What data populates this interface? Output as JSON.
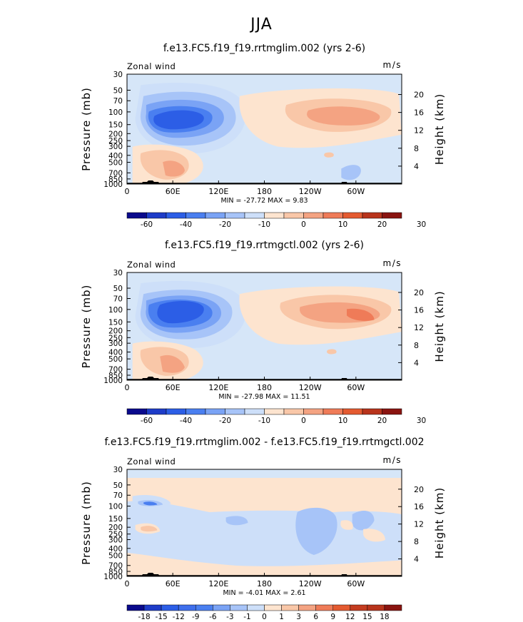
{
  "page_title": "JJA",
  "colors": {
    "bg_band": "#d6e6f8",
    "neg": [
      "#0a0a8c",
      "#1e3cc8",
      "#2c5ee6",
      "#4a7ff0",
      "#7aa3f5",
      "#a7c4f8",
      "#cddff9"
    ],
    "pos": [
      "#fde4cf",
      "#f9c7a8",
      "#f4a382",
      "#ef7b58",
      "#e45a30",
      "#b8341c",
      "#8a1410"
    ]
  },
  "chart_data": [
    {
      "type": "contour",
      "title": "f.e13.FC5.f19_f19.rrtmglim.002 (yrs 2-6)",
      "left_label": "Zonal wind",
      "right_label": "m/s",
      "ylabel": "Pressure (mb)",
      "ylabel2": "Height (km)",
      "x_ticks": [
        "0",
        "60E",
        "120E",
        "180",
        "120W",
        "60W"
      ],
      "y_ticks": [
        "30",
        "50",
        "70",
        "100",
        "150",
        "200",
        "250",
        "300",
        "400",
        "500",
        "700",
        "850",
        "1000"
      ],
      "y2_ticks": [
        "20",
        "16",
        "12",
        "8",
        "4"
      ],
      "stats": "MIN = -27.72   MAX =   9.83",
      "colorbar_labels": [
        "-60",
        "-40",
        "-20",
        "-10",
        "0",
        "10",
        "20",
        "30"
      ],
      "features": [
        {
          "lon": 75,
          "p": 160,
          "value": -25,
          "level": "neg"
        },
        {
          "lon": 255,
          "p": 120,
          "value": 9,
          "level": "pos"
        },
        {
          "lon": 60,
          "p": 550,
          "value": 6,
          "level": "pos"
        }
      ]
    },
    {
      "type": "contour",
      "title": "f.e13.FC5.f19_f19.rrtmgctl.002 (yrs 2-6)",
      "left_label": "Zonal wind",
      "right_label": "m/s",
      "ylabel": "Pressure (mb)",
      "ylabel2": "Height (km)",
      "x_ticks": [
        "0",
        "60E",
        "120E",
        "180",
        "120W",
        "60W"
      ],
      "y_ticks": [
        "30",
        "50",
        "70",
        "100",
        "150",
        "200",
        "250",
        "300",
        "400",
        "500",
        "700",
        "850",
        "1000"
      ],
      "y2_ticks": [
        "20",
        "16",
        "12",
        "8",
        "4"
      ],
      "stats": "MIN = -27.98   MAX =  11.51",
      "colorbar_labels": [
        "-60",
        "-40",
        "-20",
        "-10",
        "0",
        "10",
        "20",
        "30"
      ],
      "features": [
        {
          "lon": 75,
          "p": 150,
          "value": -26,
          "level": "neg"
        },
        {
          "lon": 265,
          "p": 120,
          "value": 11,
          "level": "pos"
        },
        {
          "lon": 60,
          "p": 550,
          "value": 6,
          "level": "pos"
        }
      ]
    },
    {
      "type": "contour",
      "title": "f.e13.FC5.f19_f19.rrtmglim.002 - f.e13.FC5.f19_f19.rrtmgctl.002",
      "left_label": "Zonal wind",
      "right_label": "m/s",
      "ylabel": "Pressure (mb)",
      "ylabel2": "Height (km)",
      "x_ticks": [
        "0",
        "60E",
        "120E",
        "180",
        "120W",
        "60W"
      ],
      "y_ticks": [
        "30",
        "50",
        "70",
        "100",
        "150",
        "200",
        "250",
        "300",
        "400",
        "500",
        "700",
        "850",
        "1000"
      ],
      "y2_ticks": [
        "20",
        "16",
        "12",
        "8",
        "4"
      ],
      "stats": "MIN =  -4.01   MAX =   2.61",
      "colorbar_labels": [
        "-18",
        "-15",
        "-12",
        "-9",
        "-6",
        "-3",
        "-1",
        "0",
        "1",
        "3",
        "6",
        "9",
        "12",
        "15",
        "18"
      ],
      "features": [
        {
          "lon": 30,
          "p": 100,
          "value": -3,
          "level": "neg"
        },
        {
          "lon": 230,
          "p": 300,
          "value": -2,
          "level": "neg"
        },
        {
          "lon": 40,
          "p": 230,
          "value": 2,
          "level": "pos"
        }
      ]
    }
  ]
}
